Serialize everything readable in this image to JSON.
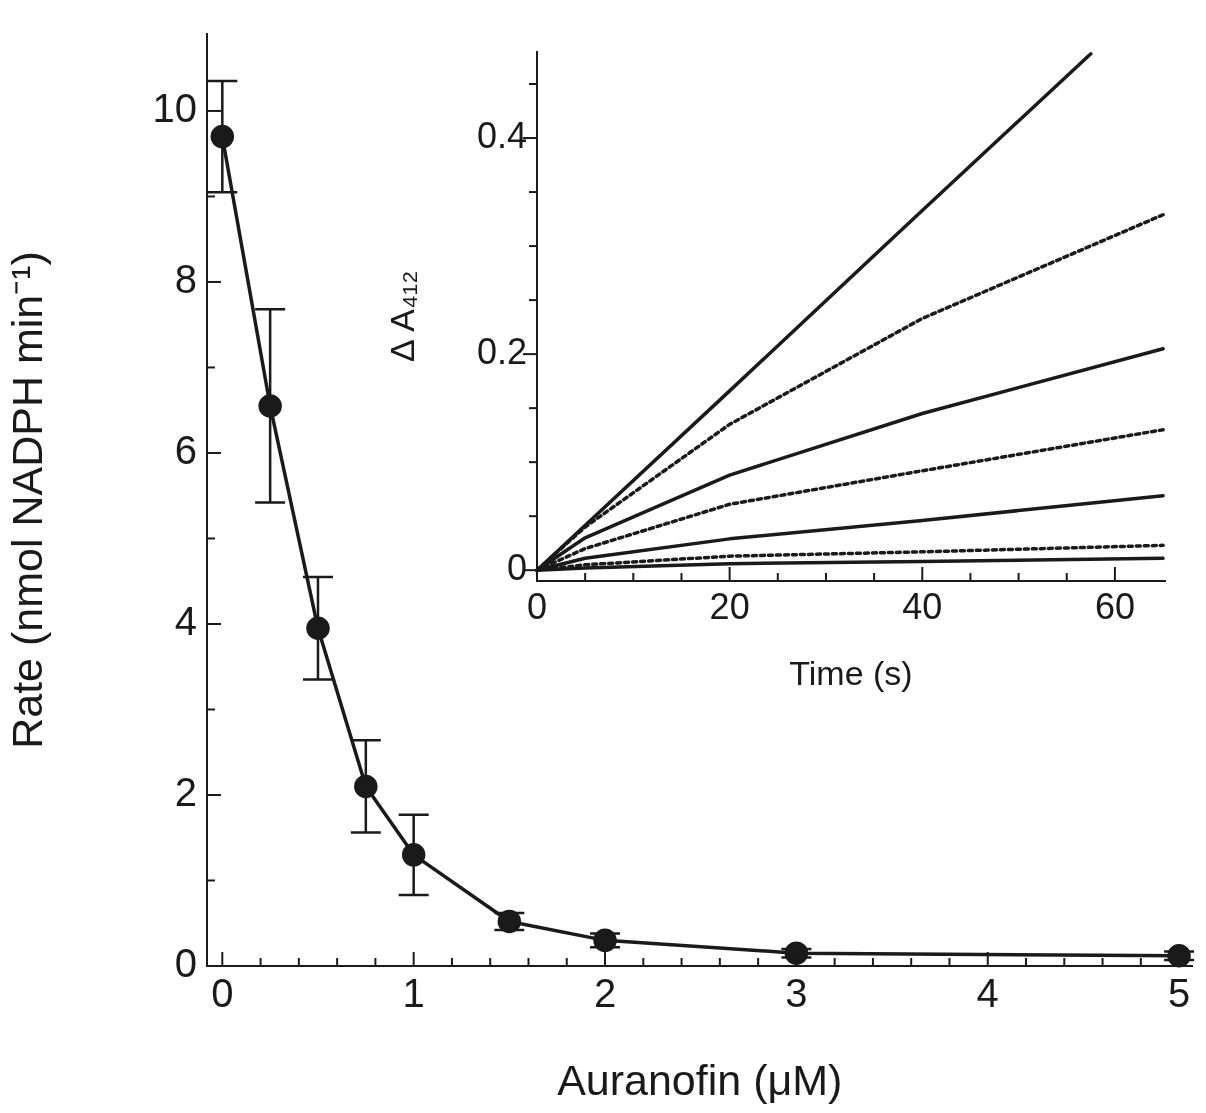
{
  "chart_data": [
    {
      "type": "line",
      "xlabel": "Auranofin (μM)",
      "ylabel": "Rate (nmol NADPH min⁻¹)",
      "x": [
        0,
        0.25,
        0.5,
        0.75,
        1,
        1.5,
        2,
        3,
        5
      ],
      "series": [
        {
          "color": "#1a1a1a",
          "values": [
            9.7,
            6.55,
            3.95,
            2.1,
            1.3,
            0.52,
            0.3,
            0.15,
            0.12
          ],
          "errors": [
            0.65,
            1.13,
            0.6,
            0.54,
            0.47,
            0.1,
            0.08,
            0.05,
            0.05
          ]
        }
      ],
      "xlim": [
        -0.08,
        5.07
      ],
      "ylim": [
        0,
        10.9
      ],
      "xticks": [
        0,
        {
          "value": 0.2,
          "label": null
        },
        {
          "value": 0.4,
          "label": null
        },
        {
          "value": 0.6,
          "label": null
        },
        {
          "value": 0.8,
          "label": null
        },
        1,
        {
          "value": 1.2,
          "label": null
        },
        {
          "value": 1.4,
          "label": null
        },
        {
          "value": 1.6,
          "label": null
        },
        {
          "value": 1.8,
          "label": null
        },
        2,
        {
          "value": 2.2,
          "label": null
        },
        {
          "value": 2.4,
          "label": null
        },
        {
          "value": 2.6,
          "label": null
        },
        {
          "value": 2.8,
          "label": null
        },
        3,
        {
          "value": 3.2,
          "label": null
        },
        {
          "value": 3.4,
          "label": null
        },
        {
          "value": 3.6,
          "label": null
        },
        {
          "value": 3.8,
          "label": null
        },
        4,
        {
          "value": 4.2,
          "label": null
        },
        {
          "value": 4.4,
          "label": null
        },
        {
          "value": 4.6,
          "label": null
        },
        {
          "value": 4.8,
          "label": null
        },
        5
      ],
      "yticks": [
        0,
        {
          "value": 1,
          "label": null
        },
        2,
        {
          "value": 3,
          "label": null
        },
        4,
        {
          "value": 5,
          "label": null
        },
        6,
        {
          "value": 7,
          "label": null
        },
        8,
        {
          "value": 9,
          "label": null
        },
        10
      ],
      "marker": "circle",
      "line_style": "solid",
      "grid": false,
      "legend": false
    },
    {
      "type": "line",
      "xlabel": "Time (s)",
      "ylabel": "Δ A₄₁₂",
      "x": [
        0,
        5,
        20,
        40,
        65
      ],
      "series": [
        {
          "color": "#1a1a1a",
          "x": [
            0,
            20,
            40,
            57.5
          ],
          "values": [
            0,
            0.166,
            0.333,
            0.478
          ],
          "line_style": "solid"
        },
        {
          "color": "#1a1a1a",
          "values": [
            0,
            0.04,
            0.135,
            0.233,
            0.329
          ],
          "line_style": "dotted"
        },
        {
          "color": "#1a1a1a",
          "values": [
            0,
            0.03,
            0.088,
            0.145,
            0.205
          ],
          "line_style": "solid"
        },
        {
          "color": "#1a1a1a",
          "values": [
            0,
            0.02,
            0.061,
            0.092,
            0.13
          ],
          "line_style": "dotted"
        },
        {
          "color": "#1a1a1a",
          "values": [
            0,
            0.011,
            0.029,
            0.046,
            0.069
          ],
          "line_style": "solid"
        },
        {
          "color": "#1a1a1a",
          "values": [
            0,
            0.005,
            0.013,
            0.017,
            0.023
          ],
          "line_style": "dotted"
        },
        {
          "color": "#1a1a1a",
          "values": [
            0,
            0.002,
            0.006,
            0.008,
            0.011
          ],
          "line_style": "solid"
        }
      ],
      "xlim": [
        0,
        65.2
      ],
      "ylim": [
        -0.01,
        0.48
      ],
      "xticks": [
        0,
        {
          "value": 5,
          "label": null
        },
        {
          "value": 10,
          "label": null
        },
        {
          "value": 15,
          "label": null
        },
        20,
        {
          "value": 25,
          "label": null
        },
        {
          "value": 30,
          "label": null
        },
        {
          "value": 35,
          "label": null
        },
        40,
        {
          "value": 45,
          "label": null
        },
        {
          "value": 50,
          "label": null
        },
        {
          "value": 55,
          "label": null
        },
        60
      ],
      "yticks": [
        0,
        {
          "value": 0.05,
          "label": null
        },
        {
          "value": 0.1,
          "label": null
        },
        {
          "value": 0.15,
          "label": null
        },
        0.2,
        {
          "value": 0.25,
          "label": null
        },
        {
          "value": 0.3,
          "label": null
        },
        {
          "value": 0.35,
          "label": null
        },
        0.4,
        {
          "value": 0.45,
          "label": null
        }
      ],
      "marker": "none",
      "grid": false,
      "legend": false
    }
  ]
}
